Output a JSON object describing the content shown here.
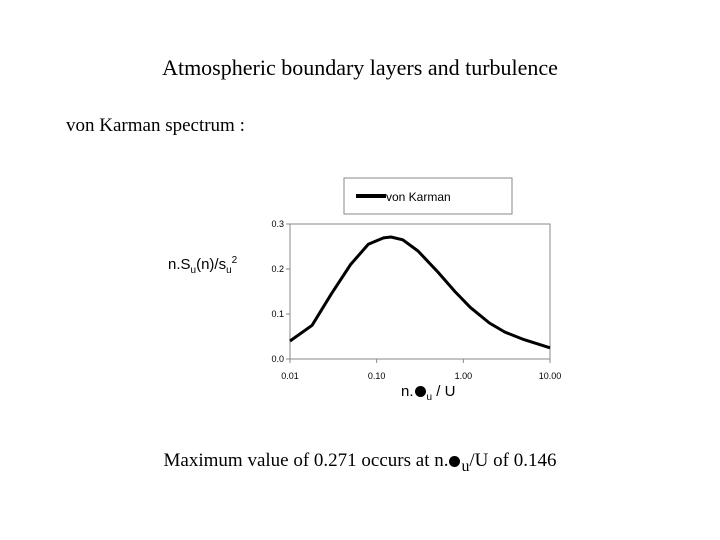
{
  "slide": {
    "title": "Atmospheric boundary layers and turbulence",
    "subtitle": "von Karman spectrum :",
    "caption_prefix": "Maximum value of 0.271 occurs at n.",
    "caption_sub": "u",
    "caption_suffix": "/U of 0.146"
  },
  "chart_data": {
    "type": "line",
    "title": "",
    "ylabel": {
      "main": "n.S",
      "sub": "u",
      "mid": "(n)/",
      "sigma": "s",
      "sigma_sub": "u",
      "sup": "2"
    },
    "xlabel": {
      "prefix": "n.",
      "sub": "u",
      "suffix": " / U"
    },
    "x_scale": "log",
    "xlim": [
      0.01,
      10
    ],
    "ylim": [
      0,
      0.3
    ],
    "x_ticks": [
      "0.01",
      "0.10",
      "1.00",
      "10.00"
    ],
    "y_ticks": [
      "0.0",
      "0.1",
      "0.2",
      "0.3"
    ],
    "legend": {
      "position": "top",
      "entries": [
        "von Karman"
      ]
    },
    "series": [
      {
        "name": "von Karman",
        "color": "#000000",
        "x": [
          0.01,
          0.018,
          0.03,
          0.05,
          0.08,
          0.12,
          0.146,
          0.2,
          0.3,
          0.5,
          0.8,
          1.2,
          2,
          3,
          5,
          10
        ],
        "y": [
          0.04,
          0.075,
          0.145,
          0.21,
          0.255,
          0.269,
          0.271,
          0.265,
          0.24,
          0.195,
          0.15,
          0.115,
          0.08,
          0.06,
          0.043,
          0.025
        ]
      }
    ]
  }
}
